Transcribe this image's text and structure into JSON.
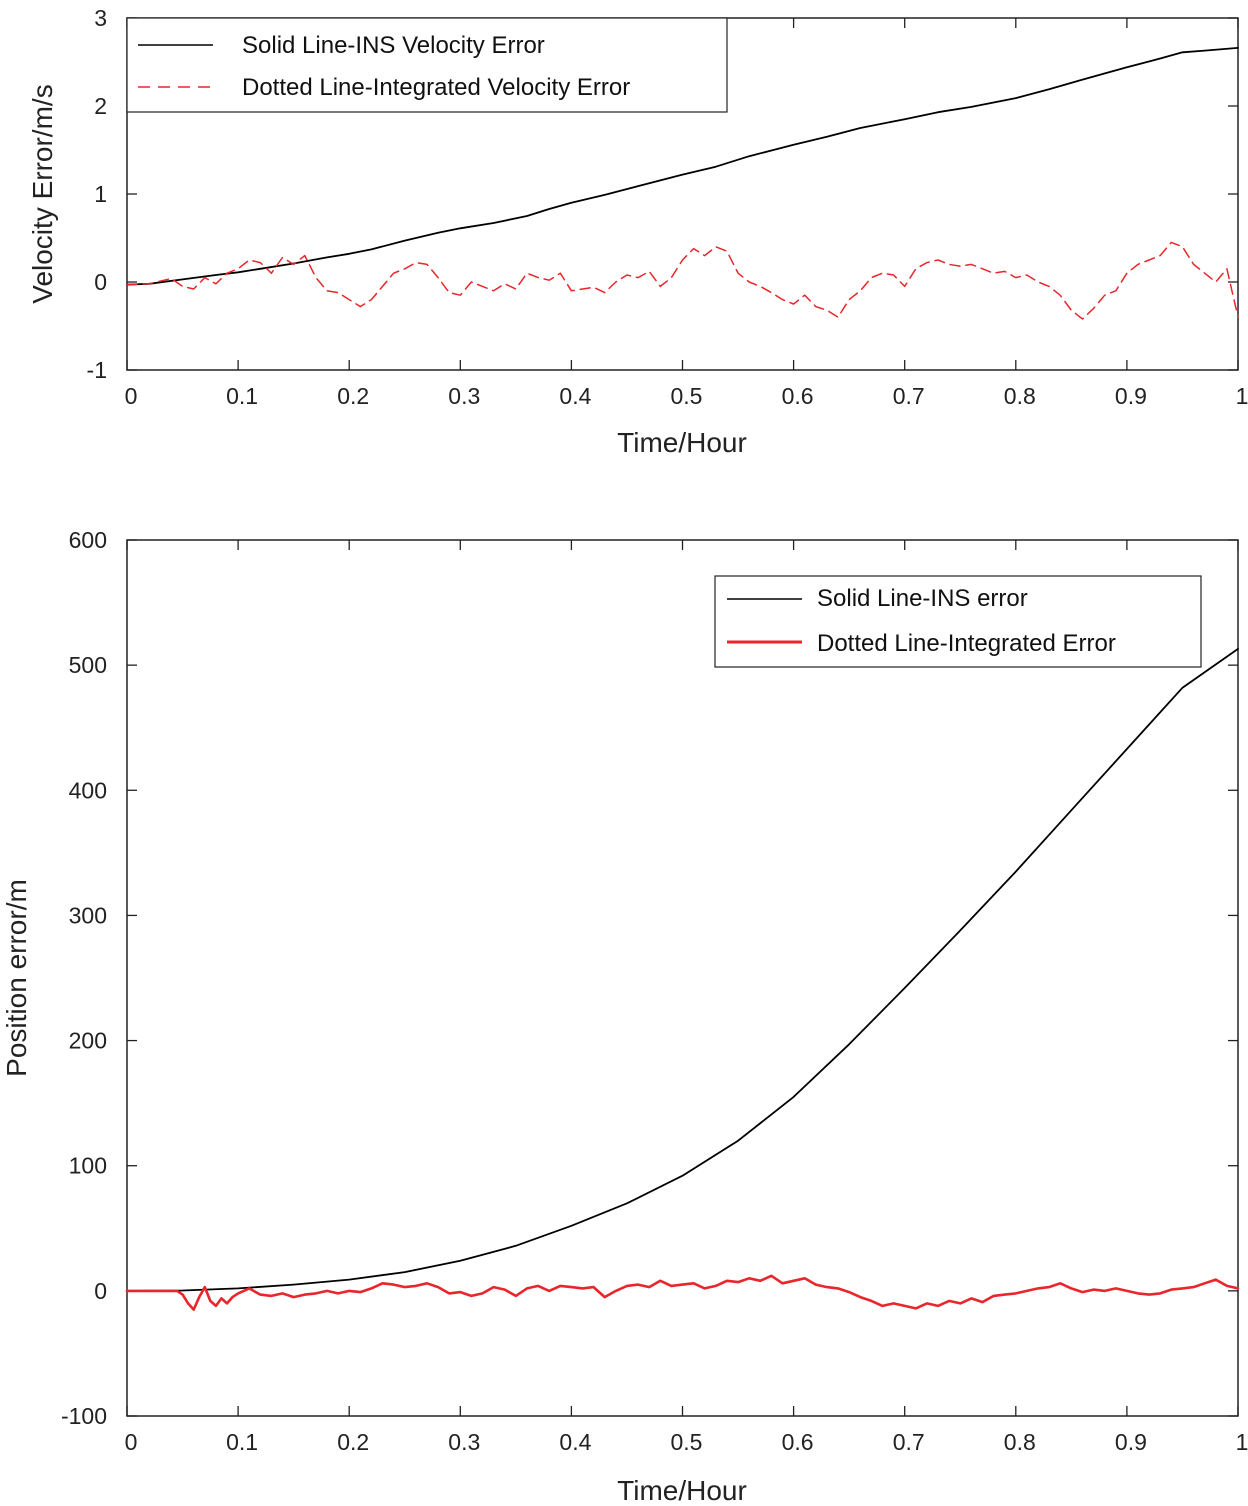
{
  "chart_data": [
    {
      "type": "line",
      "id": "velocity",
      "xlabel": "Time/Hour",
      "ylabel": "Velocity Error/m/s",
      "xlim": [
        0,
        1
      ],
      "ylim": [
        -1,
        3
      ],
      "xticks": [
        "0",
        "0.1",
        "0.2",
        "0.3",
        "0.4",
        "0.5",
        "0.6",
        "0.7",
        "0.8",
        "0.9",
        "1"
      ],
      "yticks": [
        "-1",
        "0",
        "1",
        "2",
        "3"
      ],
      "legend_position": "top-left",
      "series": [
        {
          "name": "Solid Line-INS Velocity Error",
          "style": "solid",
          "color": "#000000",
          "x": [
            0,
            0.02,
            0.05,
            0.08,
            0.1,
            0.12,
            0.15,
            0.18,
            0.2,
            0.22,
            0.25,
            0.28,
            0.3,
            0.33,
            0.36,
            0.38,
            0.4,
            0.43,
            0.46,
            0.5,
            0.53,
            0.56,
            0.6,
            0.63,
            0.66,
            0.7,
            0.73,
            0.76,
            0.8,
            0.83,
            0.86,
            0.9,
            0.93,
            0.95,
            0.97,
            1.0
          ],
          "y": [
            -0.03,
            -0.02,
            0.03,
            0.08,
            0.11,
            0.15,
            0.21,
            0.28,
            0.32,
            0.37,
            0.47,
            0.56,
            0.61,
            0.67,
            0.75,
            0.83,
            0.9,
            0.99,
            1.09,
            1.22,
            1.31,
            1.43,
            1.56,
            1.65,
            1.75,
            1.85,
            1.93,
            1.99,
            2.09,
            2.19,
            2.3,
            2.44,
            2.54,
            2.61,
            2.63,
            2.66
          ]
        },
        {
          "name": "Dotted Line-Integrated Velocity Error",
          "style": "dashed",
          "color": "#e8262b",
          "x": [
            0,
            0.02,
            0.04,
            0.05,
            0.06,
            0.07,
            0.08,
            0.09,
            0.1,
            0.11,
            0.12,
            0.13,
            0.14,
            0.15,
            0.16,
            0.17,
            0.18,
            0.19,
            0.2,
            0.21,
            0.22,
            0.23,
            0.24,
            0.25,
            0.26,
            0.27,
            0.28,
            0.29,
            0.3,
            0.31,
            0.32,
            0.33,
            0.34,
            0.35,
            0.36,
            0.37,
            0.38,
            0.39,
            0.4,
            0.41,
            0.42,
            0.43,
            0.44,
            0.45,
            0.46,
            0.47,
            0.48,
            0.49,
            0.5,
            0.51,
            0.52,
            0.53,
            0.54,
            0.55,
            0.56,
            0.57,
            0.58,
            0.59,
            0.6,
            0.61,
            0.62,
            0.63,
            0.64,
            0.65,
            0.66,
            0.67,
            0.68,
            0.69,
            0.7,
            0.71,
            0.72,
            0.73,
            0.74,
            0.75,
            0.76,
            0.77,
            0.78,
            0.79,
            0.8,
            0.81,
            0.82,
            0.83,
            0.84,
            0.85,
            0.86,
            0.87,
            0.88,
            0.89,
            0.9,
            0.91,
            0.92,
            0.93,
            0.94,
            0.95,
            0.96,
            0.97,
            0.98,
            0.99,
            1.0
          ],
          "y": [
            -0.03,
            -0.02,
            0.04,
            -0.05,
            -0.08,
            0.05,
            -0.02,
            0.1,
            0.15,
            0.25,
            0.22,
            0.1,
            0.28,
            0.2,
            0.3,
            0.05,
            -0.1,
            -0.12,
            -0.2,
            -0.28,
            -0.2,
            -0.05,
            0.1,
            0.15,
            0.22,
            0.2,
            0.05,
            -0.12,
            -0.15,
            0.0,
            -0.05,
            -0.1,
            -0.02,
            -0.08,
            0.1,
            0.05,
            0.02,
            0.1,
            -0.1,
            -0.08,
            -0.06,
            -0.12,
            0.0,
            0.08,
            0.05,
            0.12,
            -0.05,
            0.05,
            0.25,
            0.38,
            0.3,
            0.4,
            0.35,
            0.1,
            0.0,
            -0.05,
            -0.12,
            -0.2,
            -0.25,
            -0.15,
            -0.28,
            -0.32,
            -0.4,
            -0.2,
            -0.1,
            0.05,
            0.1,
            0.08,
            -0.05,
            0.15,
            0.22,
            0.25,
            0.2,
            0.18,
            0.2,
            0.15,
            0.1,
            0.12,
            0.05,
            0.08,
            0.0,
            -0.05,
            -0.15,
            -0.32,
            -0.42,
            -0.3,
            -0.15,
            -0.1,
            0.1,
            0.2,
            0.25,
            0.3,
            0.45,
            0.4,
            0.2,
            0.1,
            0.0,
            0.15,
            -0.4
          ]
        }
      ]
    },
    {
      "type": "line",
      "id": "position",
      "xlabel": "Time/Hour",
      "ylabel": "Position error/m",
      "xlim": [
        0,
        1
      ],
      "ylim": [
        -100,
        600
      ],
      "xticks": [
        "0",
        "0.1",
        "0.2",
        "0.3",
        "0.4",
        "0.5",
        "0.6",
        "0.7",
        "0.8",
        "0.9",
        "1"
      ],
      "yticks": [
        "-100",
        "0",
        "100",
        "200",
        "300",
        "400",
        "500",
        "600"
      ],
      "legend_position": "top-right",
      "series": [
        {
          "name": "Solid Line-INS error",
          "style": "solid",
          "color": "#000000",
          "x": [
            0,
            0.05,
            0.1,
            0.15,
            0.2,
            0.25,
            0.3,
            0.35,
            0.4,
            0.45,
            0.5,
            0.55,
            0.6,
            0.65,
            0.7,
            0.75,
            0.8,
            0.85,
            0.9,
            0.95,
            1.0
          ],
          "y": [
            0,
            0.3,
            2,
            5,
            9,
            15,
            24,
            36,
            52,
            70,
            92,
            120,
            155,
            197,
            242,
            288,
            335,
            384,
            433,
            482,
            513
          ]
        },
        {
          "name": "Dotted Line-Integrated Error",
          "style": "solid",
          "color": "#e8262b",
          "x": [
            0,
            0.03,
            0.045,
            0.05,
            0.055,
            0.06,
            0.065,
            0.07,
            0.075,
            0.08,
            0.085,
            0.09,
            0.095,
            0.1,
            0.11,
            0.12,
            0.13,
            0.14,
            0.15,
            0.16,
            0.17,
            0.18,
            0.19,
            0.2,
            0.21,
            0.22,
            0.23,
            0.24,
            0.25,
            0.26,
            0.27,
            0.28,
            0.29,
            0.3,
            0.31,
            0.32,
            0.33,
            0.34,
            0.35,
            0.36,
            0.37,
            0.38,
            0.39,
            0.4,
            0.41,
            0.42,
            0.43,
            0.44,
            0.45,
            0.46,
            0.47,
            0.48,
            0.49,
            0.5,
            0.51,
            0.52,
            0.53,
            0.54,
            0.55,
            0.56,
            0.57,
            0.58,
            0.59,
            0.6,
            0.61,
            0.62,
            0.63,
            0.64,
            0.65,
            0.66,
            0.67,
            0.68,
            0.69,
            0.7,
            0.71,
            0.72,
            0.73,
            0.74,
            0.75,
            0.76,
            0.77,
            0.78,
            0.79,
            0.8,
            0.81,
            0.82,
            0.83,
            0.84,
            0.85,
            0.86,
            0.87,
            0.88,
            0.89,
            0.9,
            0.91,
            0.92,
            0.93,
            0.94,
            0.95,
            0.96,
            0.97,
            0.98,
            0.99,
            1.0
          ],
          "y": [
            0,
            0,
            0,
            -3,
            -10,
            -15,
            -5,
            3,
            -8,
            -12,
            -6,
            -10,
            -5,
            -2,
            2,
            -3,
            -4,
            -2,
            -5,
            -3,
            -2,
            0,
            -2,
            0,
            -1,
            2,
            6,
            5,
            3,
            4,
            6,
            3,
            -2,
            -1,
            -4,
            -2,
            3,
            1,
            -4,
            2,
            4,
            0,
            4,
            3,
            2,
            3,
            -5,
            0,
            4,
            5,
            3,
            8,
            4,
            5,
            6,
            2,
            4,
            8,
            7,
            10,
            8,
            12,
            6,
            8,
            10,
            5,
            3,
            2,
            -1,
            -5,
            -8,
            -12,
            -10,
            -12,
            -14,
            -10,
            -12,
            -8,
            -10,
            -6,
            -9,
            -4,
            -3,
            -2,
            0,
            2,
            3,
            6,
            2,
            -1,
            1,
            0,
            2,
            0,
            -2,
            -3,
            -2,
            1,
            2,
            3,
            6,
            9,
            4,
            2
          ]
        }
      ]
    }
  ]
}
